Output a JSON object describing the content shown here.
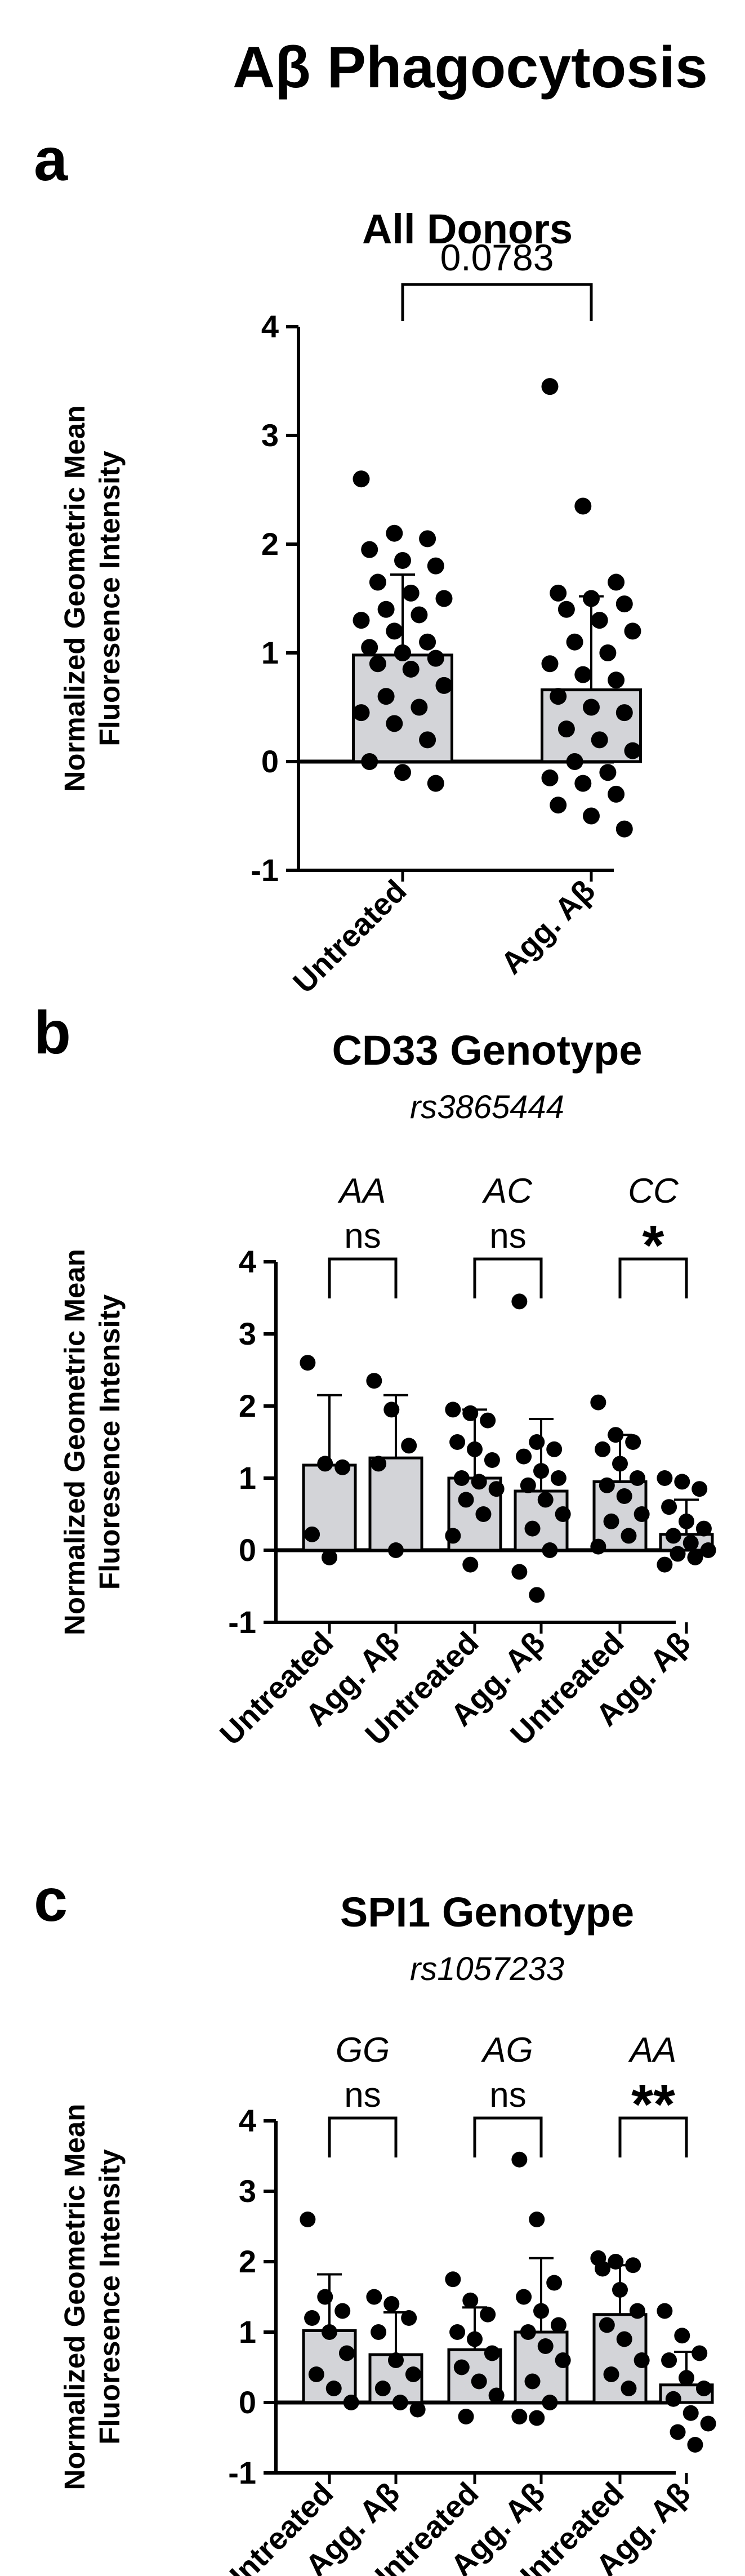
{
  "figure_title": "Aβ Phagocytosis",
  "colors": {
    "bar_fill": "#d3d4d8",
    "stroke": "#000000",
    "point": "#000000"
  },
  "chart_data": [
    {
      "type": "bar",
      "panel": "a",
      "title": "All Donors",
      "subtitle": "",
      "ylabel_lines": [
        "Normalized Geometric Mean",
        "Fluoresence Intensity"
      ],
      "ylim": [
        -1,
        4
      ],
      "yticks": [
        -1,
        0,
        1,
        2,
        3,
        4
      ],
      "categories": [
        "Untreated",
        "Agg. Aβ"
      ],
      "bars": [
        {
          "label": "Untreated",
          "value": 0.98,
          "sd_upper": 1.72,
          "points": [
            2.6,
            2.1,
            2.05,
            1.95,
            1.85,
            1.8,
            1.65,
            1.55,
            1.5,
            1.4,
            1.35,
            1.3,
            1.2,
            1.1,
            1.05,
            1.0,
            0.95,
            0.9,
            0.85,
            0.7,
            0.6,
            0.5,
            0.45,
            0.35,
            0.2,
            0.0,
            -0.1,
            -0.2
          ]
        },
        {
          "label": "Agg. Aβ",
          "value": 0.66,
          "sd_upper": 1.52,
          "points": [
            3.45,
            2.35,
            1.65,
            1.55,
            1.5,
            1.45,
            1.4,
            1.3,
            1.2,
            1.1,
            1.0,
            0.9,
            0.8,
            0.75,
            0.6,
            0.5,
            0.45,
            0.3,
            0.2,
            0.1,
            0.0,
            -0.1,
            -0.15,
            -0.2,
            -0.3,
            -0.4,
            -0.5,
            -0.62
          ]
        }
      ],
      "comparisons": [
        {
          "from": 0,
          "to": 1,
          "label": "0.0783"
        }
      ]
    },
    {
      "type": "bar",
      "panel": "b",
      "title": "CD33 Genotype",
      "subtitle": "rs3865444",
      "ylabel_lines": [
        "Normalized Geometric Mean",
        "Fluoresence Intensity"
      ],
      "ylim": [
        -1,
        4
      ],
      "yticks": [
        -1,
        0,
        1,
        2,
        3,
        4
      ],
      "categories": [
        "Untreated",
        "Agg. Aβ",
        "Untreated",
        "Agg. Aβ",
        "Untreated",
        "Agg. Aβ"
      ],
      "groups": [
        "AA",
        "AC",
        "CC"
      ],
      "bars": [
        {
          "label": "Untreated",
          "value": 1.18,
          "sd_upper": 2.15,
          "points": [
            2.6,
            1.2,
            1.15,
            0.22,
            -0.1
          ]
        },
        {
          "label": "Agg. Aβ",
          "value": 1.28,
          "sd_upper": 2.15,
          "points": [
            2.35,
            1.95,
            1.45,
            1.2,
            0.0
          ]
        },
        {
          "label": "Untreated",
          "value": 1.0,
          "sd_upper": 1.95,
          "points": [
            1.95,
            1.9,
            1.8,
            1.5,
            1.4,
            1.25,
            1.0,
            0.95,
            0.85,
            0.7,
            0.5,
            0.2,
            -0.2
          ]
        },
        {
          "label": "Agg. Aβ",
          "value": 0.82,
          "sd_upper": 1.82,
          "points": [
            3.45,
            1.5,
            1.4,
            1.3,
            1.1,
            1.0,
            0.9,
            0.7,
            0.5,
            0.3,
            0.0,
            -0.3,
            -0.62
          ]
        },
        {
          "label": "Untreated",
          "value": 0.95,
          "sd_upper": 1.6,
          "points": [
            2.05,
            1.6,
            1.5,
            1.4,
            1.2,
            1.0,
            0.9,
            0.75,
            0.5,
            0.4,
            0.2,
            0.05
          ]
        },
        {
          "label": "Agg. Aβ",
          "value": 0.22,
          "sd_upper": 0.7,
          "points": [
            1.0,
            0.95,
            0.85,
            0.6,
            0.4,
            0.3,
            0.2,
            0.1,
            0.0,
            -0.05,
            -0.1,
            -0.2
          ]
        }
      ],
      "comparisons": [
        {
          "from": 0,
          "to": 1,
          "label": "ns"
        },
        {
          "from": 2,
          "to": 3,
          "label": "ns"
        },
        {
          "from": 4,
          "to": 5,
          "label": "*"
        }
      ]
    },
    {
      "type": "bar",
      "panel": "c",
      "title": "SPI1 Genotype",
      "subtitle": "rs1057233",
      "ylabel_lines": [
        "Normalized Geometric Mean",
        "Fluoresence Intensity"
      ],
      "ylim": [
        -1,
        4
      ],
      "yticks": [
        -1,
        0,
        1,
        2,
        3,
        4
      ],
      "categories": [
        "Untreated",
        "Agg. Aβ",
        "Untreated",
        "Agg. Aβ",
        "Untreated",
        "Agg. Aβ"
      ],
      "groups": [
        "GG",
        "AG",
        "AA"
      ],
      "bars": [
        {
          "label": "Untreated",
          "value": 1.02,
          "sd_upper": 1.82,
          "points": [
            2.6,
            1.5,
            1.3,
            1.2,
            1.0,
            0.7,
            0.4,
            0.2,
            0.0
          ]
        },
        {
          "label": "Agg. Aβ",
          "value": 0.68,
          "sd_upper": 1.28,
          "points": [
            1.5,
            1.4,
            1.2,
            1.0,
            0.6,
            0.4,
            0.2,
            0.0,
            -0.1
          ]
        },
        {
          "label": "Untreated",
          "value": 0.75,
          "sd_upper": 1.35,
          "points": [
            1.75,
            1.45,
            1.25,
            1.0,
            0.9,
            0.7,
            0.5,
            0.3,
            0.1,
            -0.2
          ]
        },
        {
          "label": "Agg. Aβ",
          "value": 1.0,
          "sd_upper": 2.05,
          "points": [
            3.45,
            2.6,
            1.7,
            1.5,
            1.3,
            1.1,
            1.0,
            0.8,
            0.6,
            0.3,
            0.0,
            -0.2,
            -0.22
          ]
        },
        {
          "label": "Untreated",
          "value": 1.25,
          "sd_upper": 1.95,
          "points": [
            2.05,
            2.0,
            1.95,
            1.9,
            1.6,
            1.3,
            1.1,
            0.9,
            0.6,
            0.4,
            0.2
          ]
        },
        {
          "label": "Agg. Aβ",
          "value": 0.25,
          "sd_upper": 0.72,
          "points": [
            1.3,
            0.95,
            0.7,
            0.6,
            0.35,
            0.2,
            0.05,
            -0.15,
            -0.3,
            -0.42,
            -0.6
          ]
        }
      ],
      "comparisons": [
        {
          "from": 0,
          "to": 1,
          "label": "ns"
        },
        {
          "from": 2,
          "to": 3,
          "label": "ns"
        },
        {
          "from": 4,
          "to": 5,
          "label": "**"
        }
      ]
    }
  ]
}
